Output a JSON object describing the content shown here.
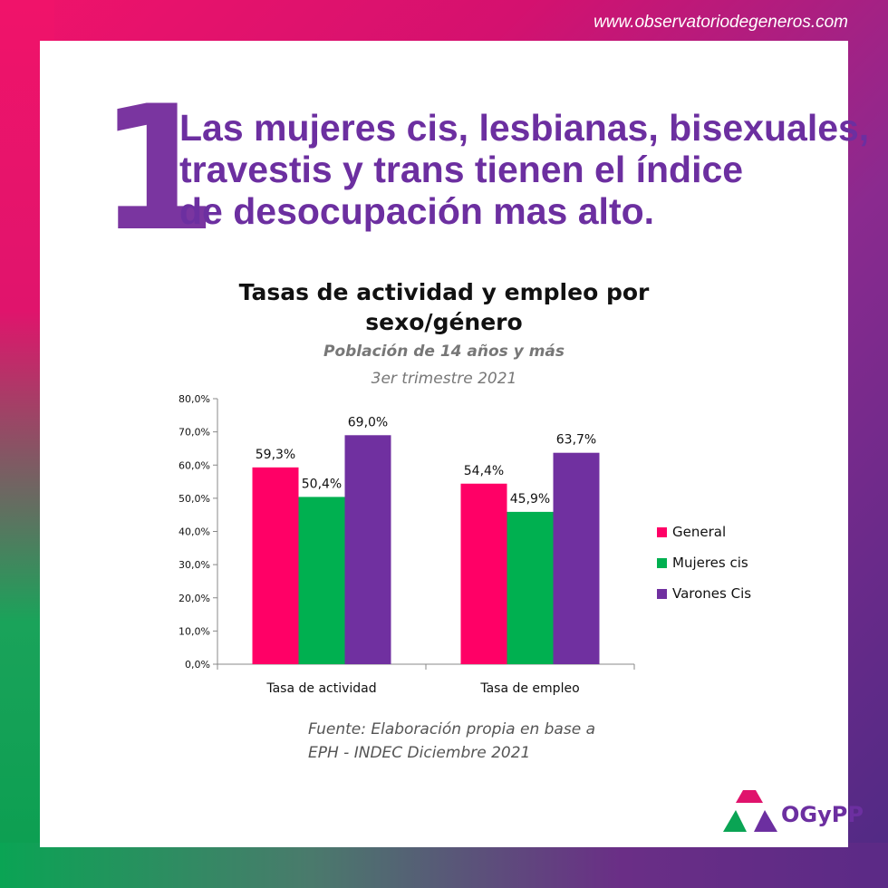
{
  "site_url": "www.observatoriodegeneros.com",
  "big_number": "1",
  "headline": [
    "Las mujeres cis, lesbianas, bisexuales,",
    "travestis y trans tienen el índice",
    "de desocupación mas alto."
  ],
  "chart_data": {
    "type": "bar",
    "title_lines": [
      "Tasas  de actividad  y empleo por",
      "sexo/género"
    ],
    "subtitle": "Población de 14 años  y más",
    "subtitle2": "3er trimestre 2021",
    "categories": [
      "Tasa de actividad",
      "Tasa de empleo"
    ],
    "series": [
      {
        "name": "General",
        "color": "#ff0066",
        "values": [
          59.3,
          54.4
        ],
        "labels": [
          "59,3%",
          "54,4%"
        ]
      },
      {
        "name": "Mujeres cis",
        "color": "#00b050",
        "values": [
          50.4,
          45.9
        ],
        "labels": [
          "50,4%",
          "45,9%"
        ]
      },
      {
        "name": "Varones Cis",
        "color": "#7030a0",
        "values": [
          69.0,
          63.7
        ],
        "labels": [
          "69,0%",
          "63,7%"
        ]
      }
    ],
    "ylim": [
      0,
      80
    ],
    "yticks": [
      0,
      10,
      20,
      30,
      40,
      50,
      60,
      70,
      80
    ],
    "ytick_labels": [
      "0,0%",
      "10,0%",
      "20,0%",
      "30,0%",
      "40,0%",
      "50,0%",
      "60,0%",
      "70,0%",
      "80,0%"
    ],
    "legend_position": "right",
    "grid": false
  },
  "source_lines": [
    "Fuente: Elaboración propia en base a",
    "EPH - INDEC Diciembre  2021"
  ],
  "logo_text": "OGyPP",
  "colors": {
    "accent": "#6c2fa0",
    "pink": "#f0136a",
    "green": "#0aa454"
  }
}
